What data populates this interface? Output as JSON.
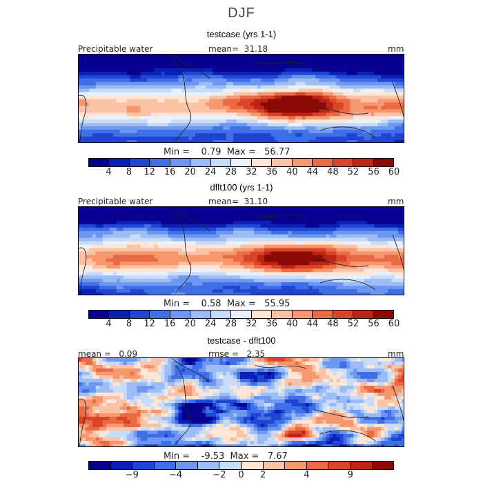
{
  "season": "DJF",
  "chart_data": [
    {
      "type": "heatmap",
      "title": "testcase (yrs 1-1)",
      "variable": "Precipitable water",
      "mean_label": "mean=",
      "mean": "31.18",
      "units": "mm",
      "min_label": "Min =",
      "min": "0.79",
      "max_label": "Max =",
      "max": "56.77",
      "colorbar_levels": [
        "4",
        "8",
        "12",
        "16",
        "20",
        "24",
        "28",
        "32",
        "36",
        "40",
        "44",
        "48",
        "52",
        "56",
        "60"
      ],
      "colors": [
        "#08008f",
        "#0a1fb4",
        "#1f46d2",
        "#3f6fe6",
        "#6d97f0",
        "#9cbcf5",
        "#c6dcf9",
        "#e8f1fc",
        "#fde6d6",
        "#fbc3a6",
        "#f6976f",
        "#ea6a44",
        "#da4527",
        "#bd2413",
        "#8b0a05"
      ]
    },
    {
      "type": "heatmap",
      "title": "dflt100 (yrs 1-1)",
      "variable": "Precipitable water",
      "mean_label": "mean=",
      "mean": "31.10",
      "units": "mm",
      "min_label": "Min =",
      "min": "0.58",
      "max_label": "Max =",
      "max": "55.95",
      "colorbar_levels": [
        "4",
        "8",
        "12",
        "16",
        "20",
        "24",
        "28",
        "32",
        "36",
        "40",
        "44",
        "48",
        "52",
        "56",
        "60"
      ],
      "colors": [
        "#08008f",
        "#0a1fb4",
        "#1f46d2",
        "#3f6fe6",
        "#6d97f0",
        "#9cbcf5",
        "#c6dcf9",
        "#e8f1fc",
        "#fde6d6",
        "#fbc3a6",
        "#f6976f",
        "#ea6a44",
        "#da4527",
        "#bd2413",
        "#8b0a05"
      ]
    },
    {
      "type": "heatmap",
      "title": "testcase - dflt100",
      "mean_label": "mean =",
      "mean": "0.09",
      "rmse_label": "rmse =",
      "rmse": "2.35",
      "units": "mm",
      "min_label": "Min =",
      "min": "-9.53",
      "max_label": "Max =",
      "max": "7.67",
      "colorbar_levels": [
        "-9",
        "-4",
        "-2",
        "0",
        "2",
        "4",
        "9"
      ],
      "colors": [
        "#08008f",
        "#0a1fb4",
        "#1f46d2",
        "#3f6fe6",
        "#6d97f0",
        "#9cbcf5",
        "#c6dcf9",
        "#fde6d6",
        "#fbc3a6",
        "#f6976f",
        "#ea6a44",
        "#da4527",
        "#bd2413",
        "#8b0a05"
      ]
    }
  ]
}
